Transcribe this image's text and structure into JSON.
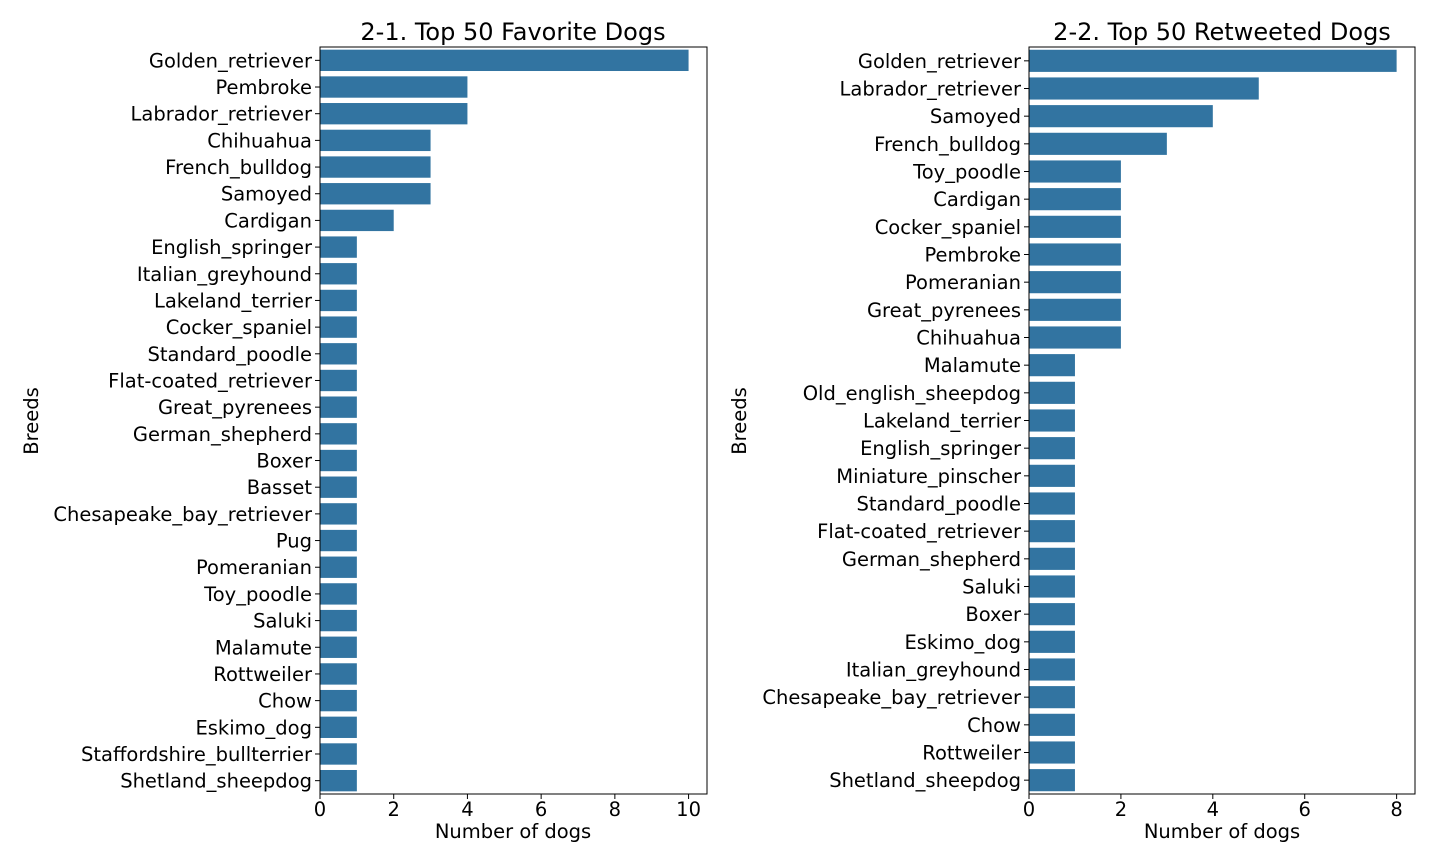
{
  "chart_data": [
    {
      "type": "bar",
      "orientation": "horizontal",
      "title": "2-1. Top 50 Favorite Dogs",
      "xlabel": "Number of dogs",
      "ylabel": "Breeds",
      "xlim": [
        0,
        10.5
      ],
      "xticks": [
        "0",
        "2",
        "4",
        "6",
        "8",
        "10"
      ],
      "bar_color": "#3274a1",
      "grid": false,
      "categories": [
        "Golden_retriever",
        "Pembroke",
        "Labrador_retriever",
        "Chihuahua",
        "French_bulldog",
        "Samoyed",
        "Cardigan",
        "English_springer",
        "Italian_greyhound",
        "Lakeland_terrier",
        "Cocker_spaniel",
        "Standard_poodle",
        "Flat-coated_retriever",
        "Great_pyrenees",
        "German_shepherd",
        "Boxer",
        "Basset",
        "Chesapeake_bay_retriever",
        "Pug",
        "Pomeranian",
        "Toy_poodle",
        "Saluki",
        "Malamute",
        "Rottweiler",
        "Chow",
        "Eskimo_dog",
        "Staffordshire_bullterrier",
        "Shetland_sheepdog"
      ],
      "values": [
        10,
        4,
        4,
        3,
        3,
        3,
        2,
        1,
        1,
        1,
        1,
        1,
        1,
        1,
        1,
        1,
        1,
        1,
        1,
        1,
        1,
        1,
        1,
        1,
        1,
        1,
        1,
        1
      ]
    },
    {
      "type": "bar",
      "orientation": "horizontal",
      "title": "2-2. Top 50 Retweeted Dogs",
      "xlabel": "Number of dogs",
      "ylabel": "Breeds",
      "xlim": [
        0,
        8.4
      ],
      "xticks": [
        "0",
        "2",
        "4",
        "6",
        "8"
      ],
      "bar_color": "#3274a1",
      "grid": false,
      "categories": [
        "Golden_retriever",
        "Labrador_retriever",
        "Samoyed",
        "French_bulldog",
        "Toy_poodle",
        "Cardigan",
        "Cocker_spaniel",
        "Pembroke",
        "Pomeranian",
        "Great_pyrenees",
        "Chihuahua",
        "Malamute",
        "Old_english_sheepdog",
        "Lakeland_terrier",
        "English_springer",
        "Miniature_pinscher",
        "Standard_poodle",
        "Flat-coated_retriever",
        "German_shepherd",
        "Saluki",
        "Boxer",
        "Eskimo_dog",
        "Italian_greyhound",
        "Chesapeake_bay_retriever",
        "Chow",
        "Rottweiler",
        "Shetland_sheepdog"
      ],
      "values": [
        8,
        5,
        4,
        3,
        2,
        2,
        2,
        2,
        2,
        2,
        2,
        1,
        1,
        1,
        1,
        1,
        1,
        1,
        1,
        1,
        1,
        1,
        1,
        1,
        1,
        1,
        1
      ]
    }
  ]
}
